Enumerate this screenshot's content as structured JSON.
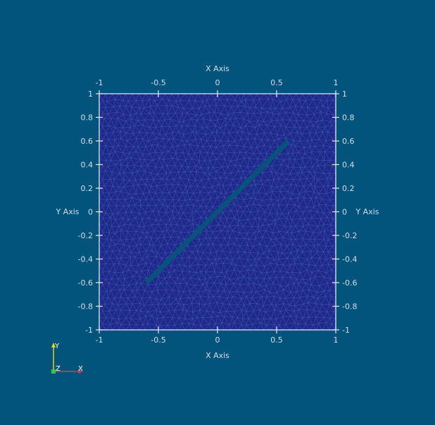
{
  "colors": {
    "background": "#02547d",
    "mesh_fill": "#1d2a8a",
    "mesh_lines": "#3f4fae",
    "axis": "#e8e8e8",
    "label": "#d8dde6",
    "crack": "#06547c",
    "orient_x": "#e23b3b",
    "orient_y": "#e8d020",
    "orient_z": "#3cc44a"
  },
  "axes": {
    "top_title": "X Axis",
    "bottom_title": "X Axis",
    "left_title": "Y Axis",
    "right_title": "Y Axis",
    "x_ticks": [
      "-1",
      "-0.5",
      "0",
      "0.5",
      "1"
    ],
    "y_ticks": [
      "1",
      "0.8",
      "0.6",
      "0.4",
      "0.2",
      "0",
      "-0.2",
      "-0.4",
      "-0.6",
      "-0.8",
      "-1"
    ]
  },
  "domain": {
    "xlim": [
      -1,
      1
    ],
    "ylim": [
      -1,
      1
    ]
  },
  "crack": {
    "start": [
      -0.6,
      -0.6
    ],
    "end": [
      0.6,
      0.6
    ]
  },
  "orientation": {
    "x": "X",
    "y": "Y",
    "z": "Z"
  }
}
